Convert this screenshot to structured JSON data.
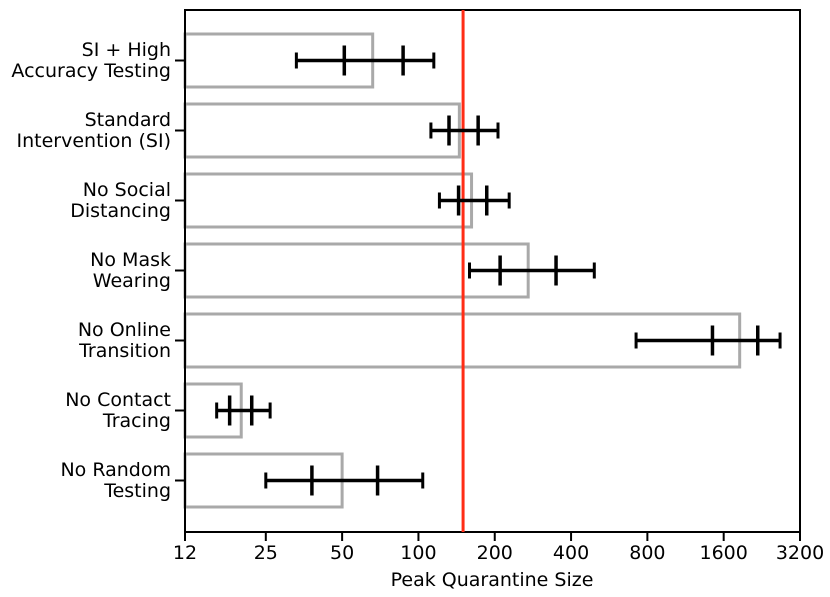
{
  "chart_data": {
    "type": "bar",
    "orientation": "horizontal",
    "x_scale": "log",
    "xlabel": "Peak Quarantine Size",
    "xlim": [
      12,
      3200
    ],
    "x_ticks": [
      12,
      25,
      50,
      100,
      200,
      400,
      800,
      1600,
      3200
    ],
    "grid": false,
    "legend": "none",
    "rows": [
      {
        "label_lines": [
          "SI + High",
          "Accuracy Testing"
        ],
        "bar": 66,
        "whisker_low": 33,
        "tick_low": 51,
        "tick_high": 87,
        "whisker_high": 115
      },
      {
        "label_lines": [
          "Standard",
          "Intervention (SI)"
        ],
        "bar": 145,
        "whisker_low": 112,
        "tick_low": 132,
        "tick_high": 172,
        "whisker_high": 206
      },
      {
        "label_lines": [
          "No Social",
          "Distancing"
        ],
        "bar": 162,
        "whisker_low": 121,
        "tick_low": 144,
        "tick_high": 186,
        "whisker_high": 228
      },
      {
        "label_lines": [
          "No Mask",
          "Wearing"
        ],
        "bar": 271,
        "whisker_low": 159,
        "tick_low": 210,
        "tick_high": 349,
        "whisker_high": 494
      },
      {
        "label_lines": [
          "No Online",
          "Transition"
        ],
        "bar": 1850,
        "whisker_low": 722,
        "tick_low": 1445,
        "tick_high": 2180,
        "whisker_high": 2670
      },
      {
        "label_lines": [
          "No Contact",
          "Tracing"
        ],
        "bar": 20,
        "whisker_low": 16,
        "tick_low": 18,
        "tick_high": 22,
        "whisker_high": 26
      },
      {
        "label_lines": [
          "No Random",
          "Testing"
        ],
        "bar": 50,
        "whisker_low": 25,
        "tick_low": 38,
        "tick_high": 69,
        "whisker_high": 104
      }
    ],
    "reference_line": {
      "x": 150,
      "color": "#ff2d16"
    },
    "colors": {
      "bar_edge": "#a9a9a9",
      "errorbar": "#000000",
      "spine": "#000000",
      "background": "#ffffff"
    }
  }
}
